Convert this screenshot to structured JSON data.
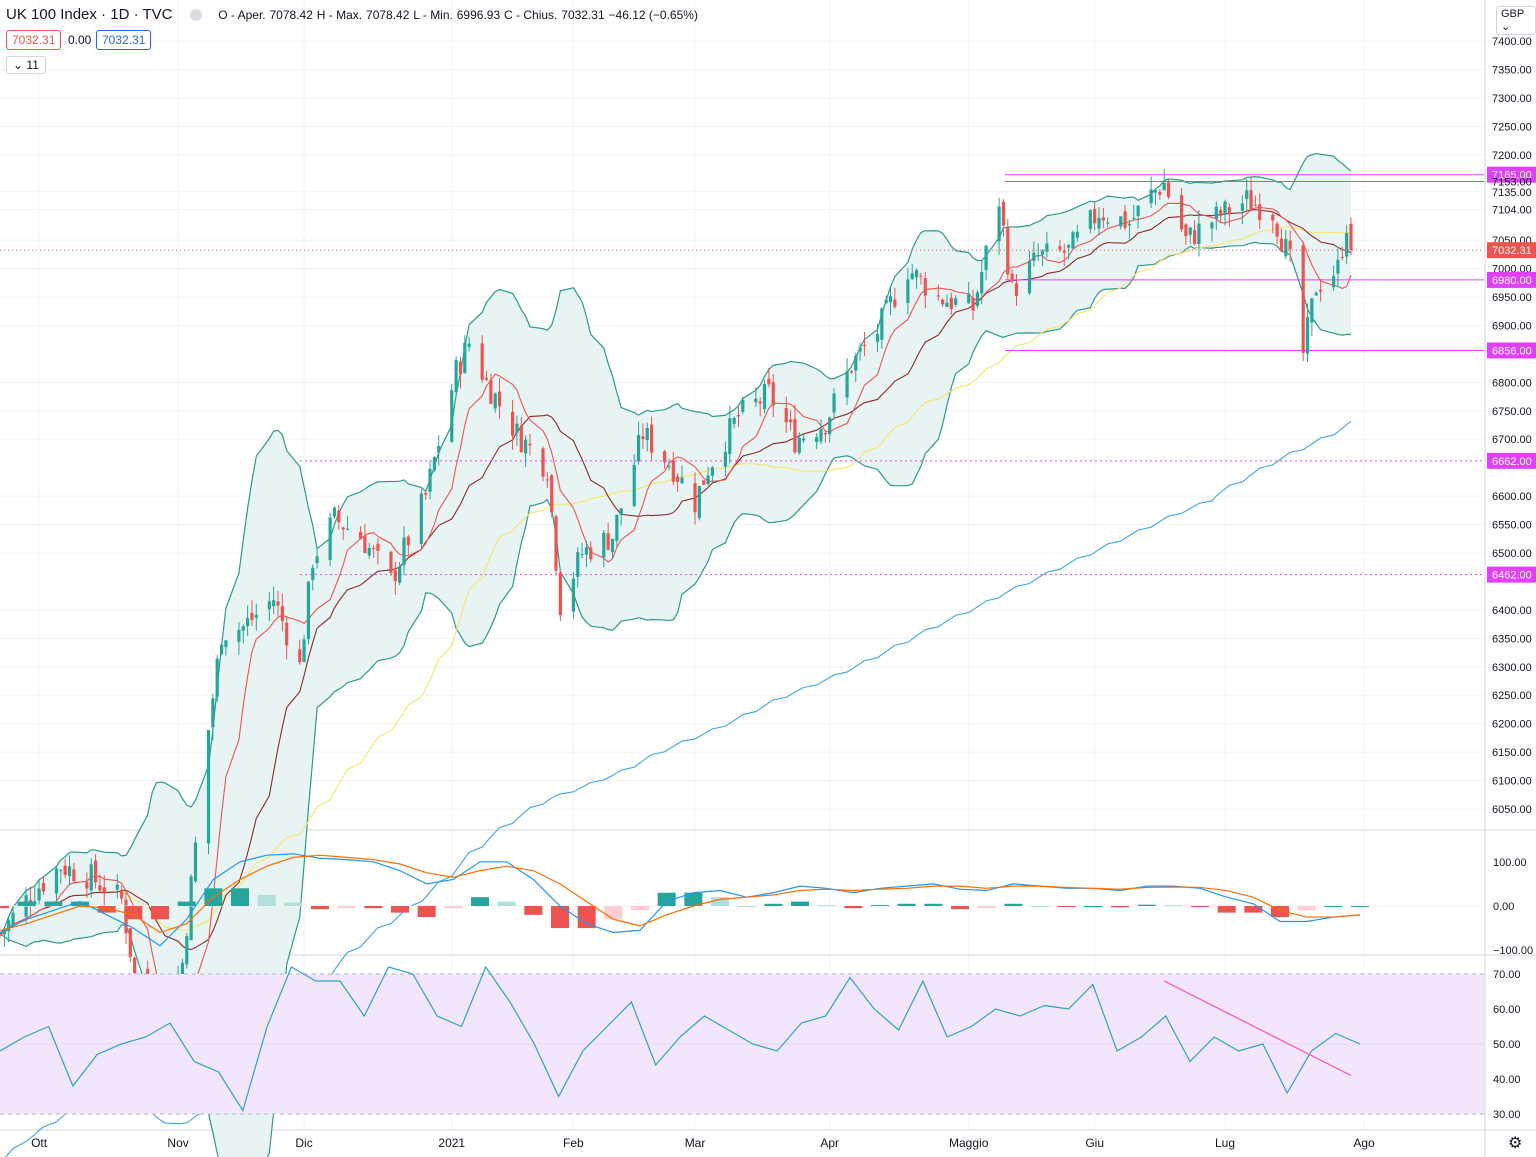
{
  "header": {
    "symbol": "UK 100 Index · 1D · TVC",
    "ohlc_labels": {
      "open": "O - Aper.",
      "high": "H - Max.",
      "low": "L - Min.",
      "close": "C - Chius."
    },
    "open": "7078.42",
    "high": "7078.42",
    "low": "6996.93",
    "close": "7032.31",
    "change": "−46.12 (−0.65%)"
  },
  "quote_boxes": {
    "bid": "7032.31",
    "spread": "0.00",
    "ask": "7032.31"
  },
  "indicators_collapse": {
    "icon": "chevron-down-icon",
    "count": "11"
  },
  "currency": "GBP",
  "colors": {
    "up": "#26a69a",
    "down": "#ef5350",
    "bb": "#2b9a8e",
    "bb_fill": "#e8f4f3",
    "ma_fast": "#ef5350",
    "ma_mid": "#8b2a2a",
    "ma_slow": "#f5e663",
    "ma_200": "#3fa5e8",
    "hline": "#e040fb",
    "macd": "#2196f3",
    "signal": "#ff6d00",
    "rsi": "#2aa3c9",
    "rsi_bg": "#f2e5fc",
    "trend": "#f050c8"
  },
  "chart_data": {
    "type": "candlestick",
    "title": "UK 100 Index · 1D · TVC",
    "x_ticks": [
      "Ott",
      "Nov",
      "Dic",
      "2021",
      "Feb",
      "Mar",
      "Apr",
      "Maggio",
      "Giu",
      "Lug",
      "Ago"
    ],
    "x_tick_dates": [
      "2020-10-01",
      "2020-11-02",
      "2020-12-01",
      "2021-01-04",
      "2021-02-01",
      "2021-03-01",
      "2021-04-01",
      "2021-05-03",
      "2021-06-01",
      "2021-07-01",
      "2021-08-02"
    ],
    "price_axis": {
      "range": [
        6000,
        7420
      ],
      "ticks": [
        "7400.00",
        "7350.00",
        "7300.00",
        "7250.00",
        "7200.00",
        "7135.00",
        "7104.00",
        "7050.00",
        "7000.00",
        "6950.00",
        "6900.00",
        "6800.00",
        "6750.00",
        "6700.00",
        "6600.00",
        "6550.00",
        "6500.00",
        "6400.00",
        "6350.00",
        "6300.00",
        "6250.00",
        "6200.00",
        "6150.00",
        "6100.00",
        "6050.00"
      ]
    },
    "horizontal_levels": [
      {
        "label": "7165.00",
        "value": 7165
      },
      {
        "label": "7153.00",
        "value": 7153
      },
      {
        "label": "6980.00",
        "value": 6980
      },
      {
        "label": "6856.00",
        "value": 6856
      },
      {
        "label": "6662.00",
        "value": 6662
      },
      {
        "label": "6462.00",
        "value": 6462
      }
    ],
    "last_price": "7032.31",
    "close_series": [
      {
        "date": "2020-09-22",
        "close": 5830
      },
      {
        "date": "2020-09-29",
        "close": 5900
      },
      {
        "date": "2020-10-06",
        "close": 5950
      },
      {
        "date": "2020-10-13",
        "close": 5930
      },
      {
        "date": "2020-10-20",
        "close": 5890
      },
      {
        "date": "2020-10-27",
        "close": 5580
      },
      {
        "date": "2020-11-03",
        "close": 5780
      },
      {
        "date": "2020-11-09",
        "close": 6190
      },
      {
        "date": "2020-11-12",
        "close": 6360
      },
      {
        "date": "2020-11-17",
        "close": 6370
      },
      {
        "date": "2020-11-24",
        "close": 6420
      },
      {
        "date": "2020-11-30",
        "close": 6300
      },
      {
        "date": "2020-12-03",
        "close": 6490
      },
      {
        "date": "2020-12-08",
        "close": 6560
      },
      {
        "date": "2020-12-14",
        "close": 6530
      },
      {
        "date": "2020-12-21",
        "close": 6450
      },
      {
        "date": "2020-12-29",
        "close": 6600
      },
      {
        "date": "2021-01-05",
        "close": 6820
      },
      {
        "date": "2021-01-08",
        "close": 6870
      },
      {
        "date": "2021-01-12",
        "close": 6800
      },
      {
        "date": "2021-01-19",
        "close": 6710
      },
      {
        "date": "2021-01-26",
        "close": 6650
      },
      {
        "date": "2021-01-29",
        "close": 6410
      },
      {
        "date": "2021-02-03",
        "close": 6500
      },
      {
        "date": "2021-02-10",
        "close": 6530
      },
      {
        "date": "2021-02-17",
        "close": 6710
      },
      {
        "date": "2021-02-24",
        "close": 6650
      },
      {
        "date": "2021-03-01",
        "close": 6590
      },
      {
        "date": "2021-03-04",
        "close": 6650
      },
      {
        "date": "2021-03-11",
        "close": 6740
      },
      {
        "date": "2021-03-18",
        "close": 6780
      },
      {
        "date": "2021-03-24",
        "close": 6700
      },
      {
        "date": "2021-03-31",
        "close": 6730
      },
      {
        "date": "2021-04-06",
        "close": 6830
      },
      {
        "date": "2021-04-12",
        "close": 6890
      },
      {
        "date": "2021-04-19",
        "close": 7000
      },
      {
        "date": "2021-04-26",
        "close": 6950
      },
      {
        "date": "2021-05-04",
        "close": 6930
      },
      {
        "date": "2021-05-10",
        "close": 7120
      },
      {
        "date": "2021-05-13",
        "close": 6960
      },
      {
        "date": "2021-05-19",
        "close": 7020
      },
      {
        "date": "2021-05-26",
        "close": 7030
      },
      {
        "date": "2021-06-02",
        "close": 7100
      },
      {
        "date": "2021-06-09",
        "close": 7080
      },
      {
        "date": "2021-06-14",
        "close": 7130
      },
      {
        "date": "2021-06-17",
        "close": 7150
      },
      {
        "date": "2021-06-22",
        "close": 7050
      },
      {
        "date": "2021-06-29",
        "close": 7090
      },
      {
        "date": "2021-07-06",
        "close": 7120
      },
      {
        "date": "2021-07-12",
        "close": 7100
      },
      {
        "date": "2021-07-16",
        "close": 7010
      },
      {
        "date": "2021-07-19",
        "close": 6850
      },
      {
        "date": "2021-07-22",
        "close": 6970
      },
      {
        "date": "2021-07-27",
        "close": 7000
      },
      {
        "date": "2021-07-29",
        "close": 7080
      },
      {
        "date": "2021-07-30",
        "close": 7032.31
      }
    ],
    "macd": {
      "axis_ticks": [
        "100.00",
        "0.00",
        "−100.00"
      ],
      "range": [
        -100,
        100
      ],
      "macd": [
        -60,
        -30,
        -10,
        10,
        -20,
        -50,
        -90,
        -30,
        60,
        100,
        115,
        118,
        108,
        105,
        100,
        80,
        50,
        60,
        100,
        100,
        60,
        0,
        -40,
        -60,
        -55,
        10,
        30,
        35,
        20,
        30,
        45,
        40,
        30,
        40,
        45,
        50,
        38,
        35,
        50,
        45,
        40,
        40,
        35,
        45,
        45,
        40,
        20,
        5,
        -35,
        -35,
        -25,
        -20
      ],
      "signal": [
        -55,
        -40,
        -20,
        0,
        -5,
        -20,
        -60,
        -40,
        20,
        60,
        90,
        110,
        115,
        110,
        105,
        95,
        75,
        65,
        80,
        90,
        80,
        50,
        10,
        -30,
        -45,
        -20,
        0,
        15,
        20,
        25,
        35,
        38,
        35,
        38,
        40,
        45,
        45,
        40,
        45,
        45,
        42,
        40,
        38,
        42,
        43,
        42,
        35,
        20,
        -10,
        -25,
        -25,
        -20
      ],
      "histogram": [
        -5,
        10,
        10,
        10,
        -15,
        -30,
        -30,
        10,
        40,
        40,
        25,
        8,
        -7,
        -5,
        -5,
        -15,
        -25,
        -5,
        20,
        10,
        -20,
        -50,
        -50,
        -30,
        -10,
        30,
        30,
        20,
        0,
        5,
        10,
        2,
        -5,
        2,
        5,
        5,
        -7,
        -5,
        5,
        0,
        -2,
        0,
        -3,
        3,
        2,
        -2,
        -15,
        -15,
        -25,
        -10,
        0,
        0
      ]
    },
    "rsi": {
      "axis_ticks": [
        "70.00",
        "60.00",
        "50.00",
        "40.00",
        "30.00"
      ],
      "band": [
        30,
        70
      ],
      "range": [
        28,
        74
      ],
      "values": [
        48,
        52,
        55,
        38,
        47,
        50,
        52,
        56,
        45,
        42,
        31,
        55,
        72,
        68,
        68,
        58,
        72,
        70,
        58,
        55,
        72,
        62,
        50,
        35,
        48,
        55,
        62,
        44,
        52,
        58,
        54,
        50,
        48,
        56,
        58,
        69,
        60,
        54,
        68,
        52,
        55,
        60,
        58,
        61,
        60,
        67,
        48,
        52,
        58,
        45,
        52,
        48,
        50,
        36,
        48,
        53,
        50
      ]
    },
    "rsi_trendline": [
      {
        "date": "2021-06-17",
        "value": 68
      },
      {
        "date": "2021-07-30",
        "value": 41
      }
    ]
  }
}
